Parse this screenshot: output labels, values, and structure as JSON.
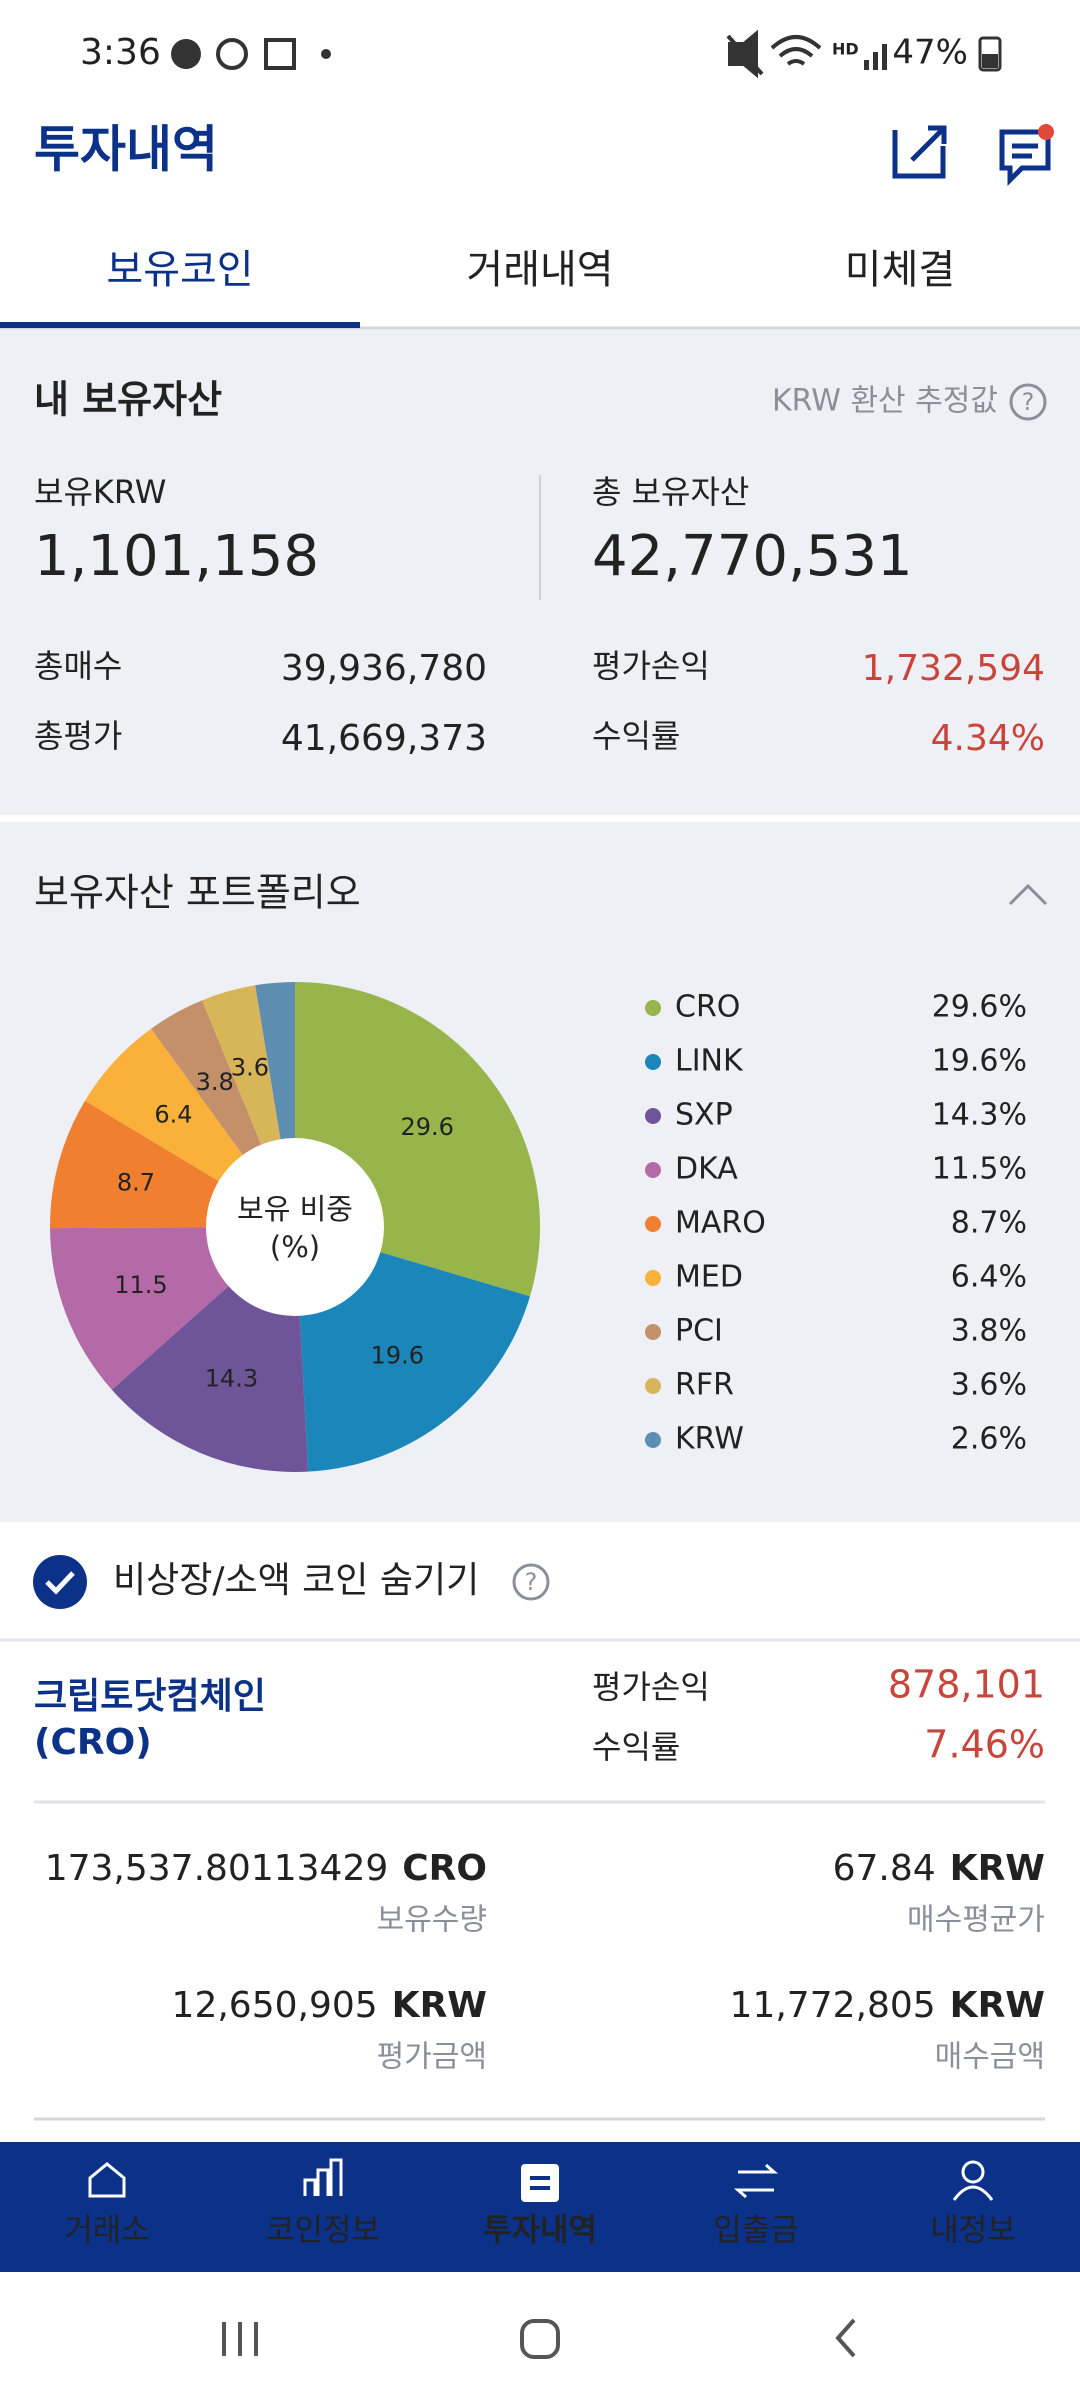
{
  "status_bar": {
    "time": "3:36",
    "battery": "47%"
  },
  "header": {
    "title": "투자내역"
  },
  "tabs": [
    "보유코인",
    "거래내역",
    "미체결"
  ],
  "summary": {
    "title": "내 보유자산",
    "note": "KRW 환산 추정값",
    "krw_label": "보유KRW",
    "krw_value": "1,101,158",
    "total_label": "총 보유자산",
    "total_value": "42,770,531",
    "rows": [
      [
        "총매수",
        "39,936,780"
      ],
      [
        "총평가",
        "41,669,373"
      ],
      [
        "평가손익",
        "1,732,594"
      ],
      [
        "수익률",
        "4.34%"
      ]
    ]
  },
  "chart_data": {
    "type": "pie",
    "title": "보유자산 포트폴리오",
    "center_label": [
      "보유 비중",
      "(%)"
    ],
    "categories": [
      "CRO",
      "LINK",
      "SXP",
      "DKA",
      "MARO",
      "MED",
      "PCI",
      "RFR",
      "KRW"
    ],
    "values": [
      29.6,
      19.6,
      14.3,
      11.5,
      8.7,
      6.4,
      3.8,
      3.6,
      2.6
    ],
    "value_labels": [
      "29.6%",
      "19.6%",
      "14.3%",
      "11.5%",
      "8.7%",
      "6.4%",
      "3.8%",
      "3.6%",
      "2.6%"
    ],
    "colors": [
      "#97b54b",
      "#1a86b9",
      "#6e5498",
      "#b56aa8",
      "#f07f30",
      "#f9b13a",
      "#c4906a",
      "#d9b55a",
      "#5e8db2"
    ]
  },
  "filter": {
    "label": "비상장/소액 코인 숨기기"
  },
  "holding": {
    "name": "크립토닷컴체인",
    "symbol": "(CRO)",
    "pl_label": "평가손익",
    "pl_value": "878,101",
    "rate_label": "수익률",
    "rate_value": "7.46%",
    "cells": [
      {
        "amount": "173,537.80113429",
        "unit": "CRO",
        "label": "보유수량"
      },
      {
        "amount": "67.84",
        "unit": "KRW",
        "label": "매수평균가"
      },
      {
        "amount": "12,650,905",
        "unit": "KRW",
        "label": "평가금액"
      },
      {
        "amount": "11,772,805",
        "unit": "KRW",
        "label": "매수금액"
      }
    ]
  },
  "nav": [
    "거래소",
    "코인정보",
    "투자내역",
    "입출금",
    "내정보"
  ]
}
